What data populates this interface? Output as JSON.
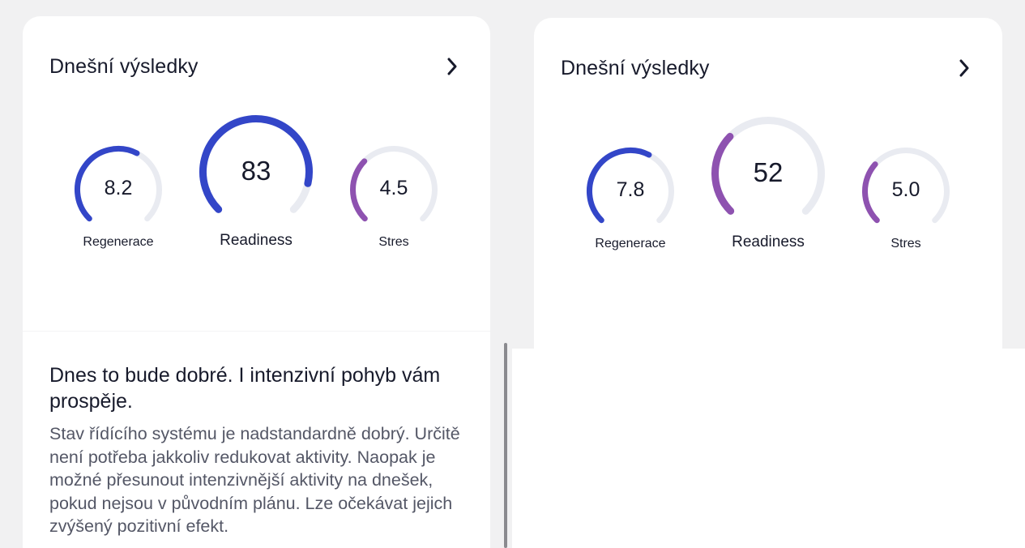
{
  "panels": [
    {
      "title": "Dnešní výsledky",
      "gauges": [
        {
          "value": "8.2",
          "label": "Regenerace",
          "level": 0.6,
          "color": "#3346c8"
        },
        {
          "value": "83",
          "label": "Readiness",
          "level": 0.88,
          "color": "#3346c8"
        },
        {
          "value": "4.5",
          "label": "Stres",
          "level": 0.33,
          "color": "#8e52b0"
        }
      ],
      "headline": "Dnes to bude dobré. I intenzivní pohyb vám prospěje.",
      "body": "Stav řídícího systému je nadstandardně dobrý. Určitě není potřeba jakkoliv redukovat aktivity. Naopak je možné přesunout intenzivnější aktivity na dnešek, pokud nejsou v původním plánu. Lze očekávat jejich zvýšený pozitivní efekt."
    },
    {
      "title": "Dnešní výsledky",
      "gauges": [
        {
          "value": "7.8",
          "label": "Regenerace",
          "level": 0.6,
          "color": "#3346c8"
        },
        {
          "value": "52",
          "label": "Readiness",
          "level": 0.33,
          "color": "#8e52b0"
        },
        {
          "value": "5.0",
          "label": "Stres",
          "level": 0.32,
          "color": "#8e52b0"
        }
      ]
    }
  ],
  "icons": {
    "chevron": "chevron-right-icon"
  },
  "colors": {
    "gauge_track": "#e9ebf1",
    "gauge_blue": "#3346c8",
    "gauge_purple": "#8e52b0",
    "text_primary": "#171a2b",
    "text_secondary": "#545766",
    "background": "#f1f1f2"
  }
}
